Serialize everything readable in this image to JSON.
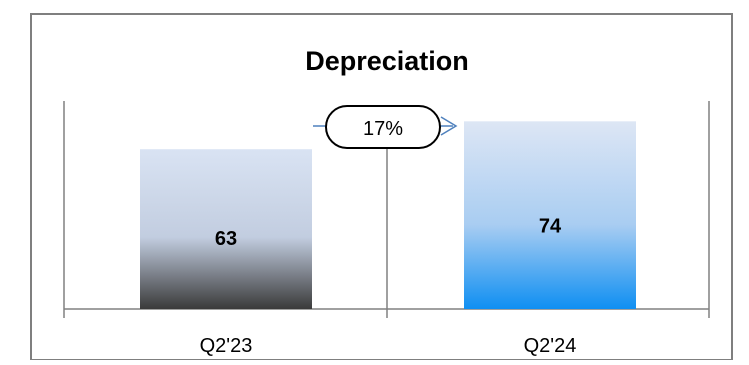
{
  "chart_data": {
    "type": "bar",
    "title": "Depreciation",
    "categories": [
      "Q2'23",
      "Q2'24"
    ],
    "values": [
      63,
      74
    ],
    "value_labels": [
      "63",
      "74"
    ],
    "change_label": "17%",
    "xlabel": "",
    "ylabel": "",
    "ylim": [
      0,
      110
    ],
    "grid": false,
    "legend": "none",
    "colors": {
      "bar_1_top": "#d9e3f3",
      "bar_1_bottom": "#3a3a3a",
      "bar_2_top": "#dde6f4",
      "bar_2_bottom": "#0f8ff2",
      "axis": "#808080",
      "arrow": "#4f81bd",
      "border": "#7f7f7f"
    }
  }
}
